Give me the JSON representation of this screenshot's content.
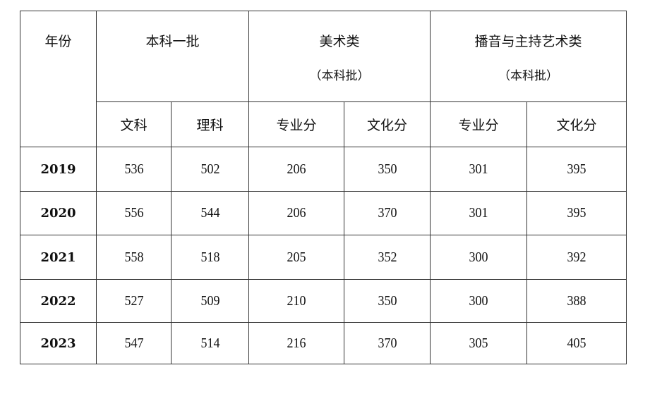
{
  "header": {
    "year": "年份",
    "group1": {
      "title": "本科一批",
      "cols": [
        "文科",
        "理科"
      ]
    },
    "group2": {
      "title": "美术类",
      "subtitle": "（本科批）",
      "cols": [
        "专业分",
        "文化分"
      ]
    },
    "group3": {
      "title": "播音与主持艺术类",
      "subtitle": "（本科批）",
      "cols": [
        "专业分",
        "文化分"
      ]
    }
  },
  "rows": [
    [
      "2019",
      "536",
      "502",
      "206",
      "350",
      "301",
      "395"
    ],
    [
      "2020",
      "556",
      "544",
      "206",
      "370",
      "301",
      "395"
    ],
    [
      "2021",
      "558",
      "518",
      "205",
      "352",
      "300",
      "392"
    ],
    [
      "2022",
      "527",
      "509",
      "210",
      "350",
      "300",
      "388"
    ],
    [
      "2023",
      "547",
      "514",
      "216",
      "370",
      "305",
      "405"
    ]
  ]
}
